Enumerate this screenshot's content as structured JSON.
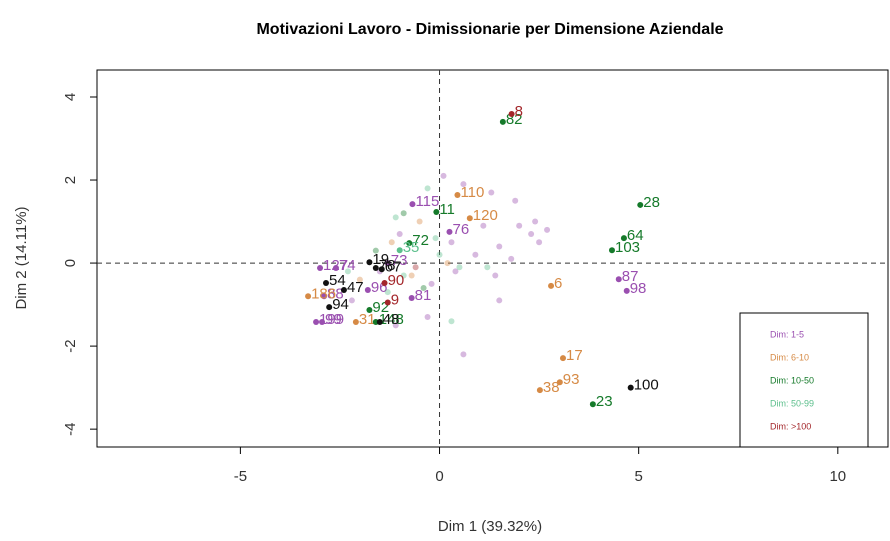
{
  "chart_data": {
    "type": "scatter",
    "title": "Motivazioni Lavoro - Dimissionarie per Dimensione Aziendale",
    "xlabel": "Dim 1 (39.32%)",
    "ylabel": "Dim 2 (14.11%)",
    "xlim": [
      -8.6,
      11.26
    ],
    "ylim": [
      -4.43,
      4.65
    ],
    "xticks": [
      -5,
      0,
      5,
      10
    ],
    "yticks": [
      -4,
      -2,
      0,
      2,
      4
    ],
    "hline": 0,
    "vline": 0,
    "legend": "bottomright",
    "series": [
      {
        "name": "Dim: 1-5",
        "color": "#9a4fb0",
        "x": [
          -0.68,
          0.25,
          -3.0,
          -2.6,
          -1.3,
          -1.8,
          -0.7,
          -2.9,
          -3.1,
          -2.95,
          4.5,
          4.7,
          0.1,
          0.6,
          1.3,
          1.9,
          2.4,
          2.3,
          1.5,
          0.9,
          1.8,
          2.5,
          0.4,
          1.4,
          -0.3,
          0.6,
          -1.1,
          -0.2,
          1.1,
          -1.5,
          -2.2,
          -1.0,
          1.5,
          0.3,
          2.7,
          2.0
        ],
        "y": [
          1.42,
          0.75,
          -0.12,
          -0.12,
          0.0,
          -0.65,
          -0.84,
          -0.8,
          -1.42,
          -1.42,
          -0.39,
          -0.67,
          2.1,
          1.9,
          1.7,
          1.5,
          1.0,
          0.7,
          0.4,
          0.2,
          0.1,
          0.5,
          -0.2,
          -0.3,
          -1.3,
          -2.2,
          -1.5,
          -0.5,
          0.9,
          -0.2,
          -0.9,
          0.7,
          -0.9,
          0.5,
          0.8,
          0.9
        ],
        "labels": [
          "115",
          "76",
          "127",
          "74",
          "73",
          "96",
          "81",
          "88",
          "199",
          "99",
          "87",
          "98",
          null,
          null,
          null,
          null,
          null,
          null,
          null,
          null,
          null,
          null,
          null,
          null,
          null,
          null,
          null,
          null,
          null,
          null,
          null,
          null,
          null,
          null,
          null,
          null
        ]
      },
      {
        "name": "Dim: 6-10",
        "color": "#d68a45",
        "x": [
          0.45,
          0.76,
          2.8,
          3.1,
          3.02,
          2.52,
          -3.3,
          -2.1,
          -0.5,
          -1.2,
          -2.0,
          0.2,
          -0.7
        ],
        "y": [
          1.64,
          1.08,
          -0.55,
          -2.29,
          -2.87,
          -3.06,
          -0.8,
          -1.42,
          1.0,
          0.5,
          -0.4,
          0.0,
          -0.3
        ],
        "labels": [
          "110",
          "120",
          "6",
          "17",
          "93",
          "38",
          "186",
          "31",
          null,
          null,
          null,
          null,
          null
        ]
      },
      {
        "name": "Dim: 10-50",
        "color": "#157a2a",
        "x": [
          1.59,
          5.04,
          4.63,
          4.33,
          3.85,
          -0.08,
          -0.76,
          -1.76,
          -1.6,
          -0.9,
          -1.6,
          -0.4
        ],
        "y": [
          3.4,
          1.4,
          0.6,
          0.31,
          -3.4,
          1.23,
          0.48,
          -1.13,
          -1.42,
          1.2,
          0.3,
          -0.6
        ],
        "labels": [
          "82",
          "28",
          "64",
          "103",
          "23",
          "11",
          "72",
          "92",
          "148",
          null,
          null,
          null
        ]
      },
      {
        "name": "Dim: 50-99",
        "color": "#5cbf8c",
        "x": [
          -1.0,
          -0.3,
          -1.1,
          -0.1,
          0.5,
          -0.9,
          0.3,
          1.2,
          -1.3,
          0.0,
          -2.3
        ],
        "y": [
          0.31,
          1.8,
          1.1,
          0.6,
          -0.1,
          -0.3,
          -1.4,
          -0.1,
          -0.7,
          0.2,
          -0.2
        ],
        "labels": [
          "35",
          null,
          null,
          null,
          null,
          null,
          null,
          null,
          null,
          null,
          null
        ]
      },
      {
        "name": "Dim: >100",
        "color": "#a3262a",
        "x": [
          1.81,
          -1.38,
          -1.3,
          -0.6
        ],
        "y": [
          3.59,
          -0.48,
          -0.95,
          -0.1
        ],
        "labels": [
          "8",
          "90",
          "9",
          null
        ]
      },
      {
        "color": "#111111",
        "x": [
          -1.76,
          -1.6,
          -1.45,
          -2.85,
          -2.4,
          -2.77,
          -1.5,
          4.8
        ],
        "y": [
          0.02,
          -0.12,
          -0.15,
          -0.48,
          -0.65,
          -1.06,
          -1.42,
          -3.0
        ],
        "labels": [
          "19",
          "78",
          "67",
          "54",
          "47",
          "94",
          "48",
          "100"
        ]
      }
    ]
  }
}
